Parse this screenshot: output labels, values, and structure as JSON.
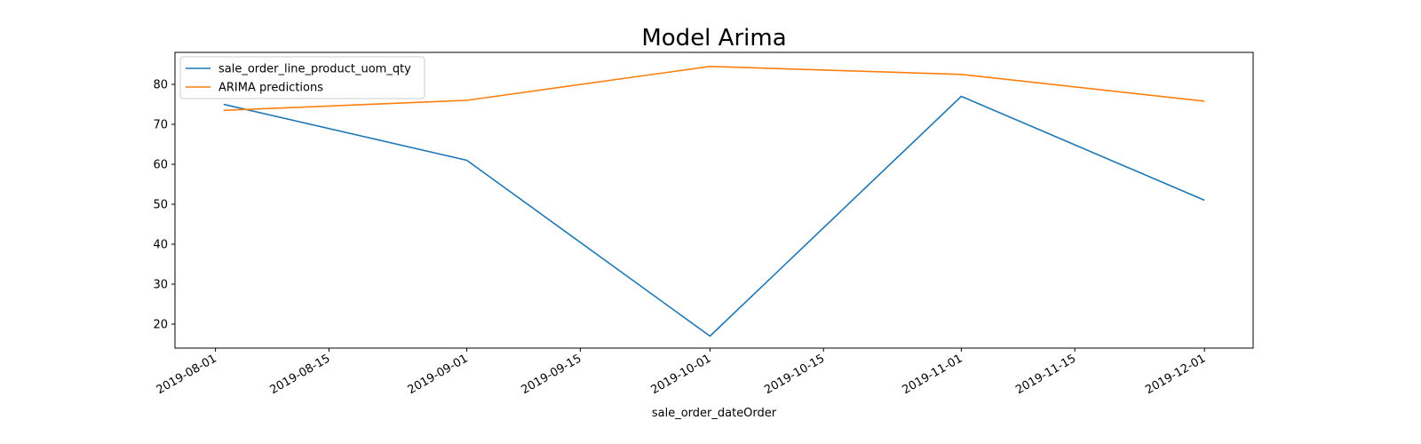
{
  "chart_data": {
    "type": "line",
    "title": "Model Arima",
    "xlabel": "sale_order_dateOrder",
    "ylabel": "",
    "x": [
      "2019-08-02",
      "2019-09-01",
      "2019-10-01",
      "2019-11-01",
      "2019-12-01"
    ],
    "series": [
      {
        "name": "sale_order_line_product_uom_qty",
        "color": "#1f77b4",
        "values": [
          75,
          61,
          17,
          77,
          51
        ]
      },
      {
        "name": "ARIMA predictions",
        "color": "#ff7f0e",
        "values": [
          73.5,
          76,
          84.5,
          82.5,
          75.8
        ]
      }
    ],
    "xticks": [
      "2019-08-01",
      "2019-08-15",
      "2019-09-01",
      "2019-09-15",
      "2019-10-01",
      "2019-10-15",
      "2019-11-01",
      "2019-11-15",
      "2019-12-01"
    ],
    "yticks": [
      20,
      30,
      40,
      50,
      60,
      70,
      80
    ],
    "xlim": [
      "2019-07-27",
      "2019-12-07"
    ],
    "ylim": [
      14,
      88
    ],
    "grid": false,
    "legend_position": "upper-left"
  }
}
